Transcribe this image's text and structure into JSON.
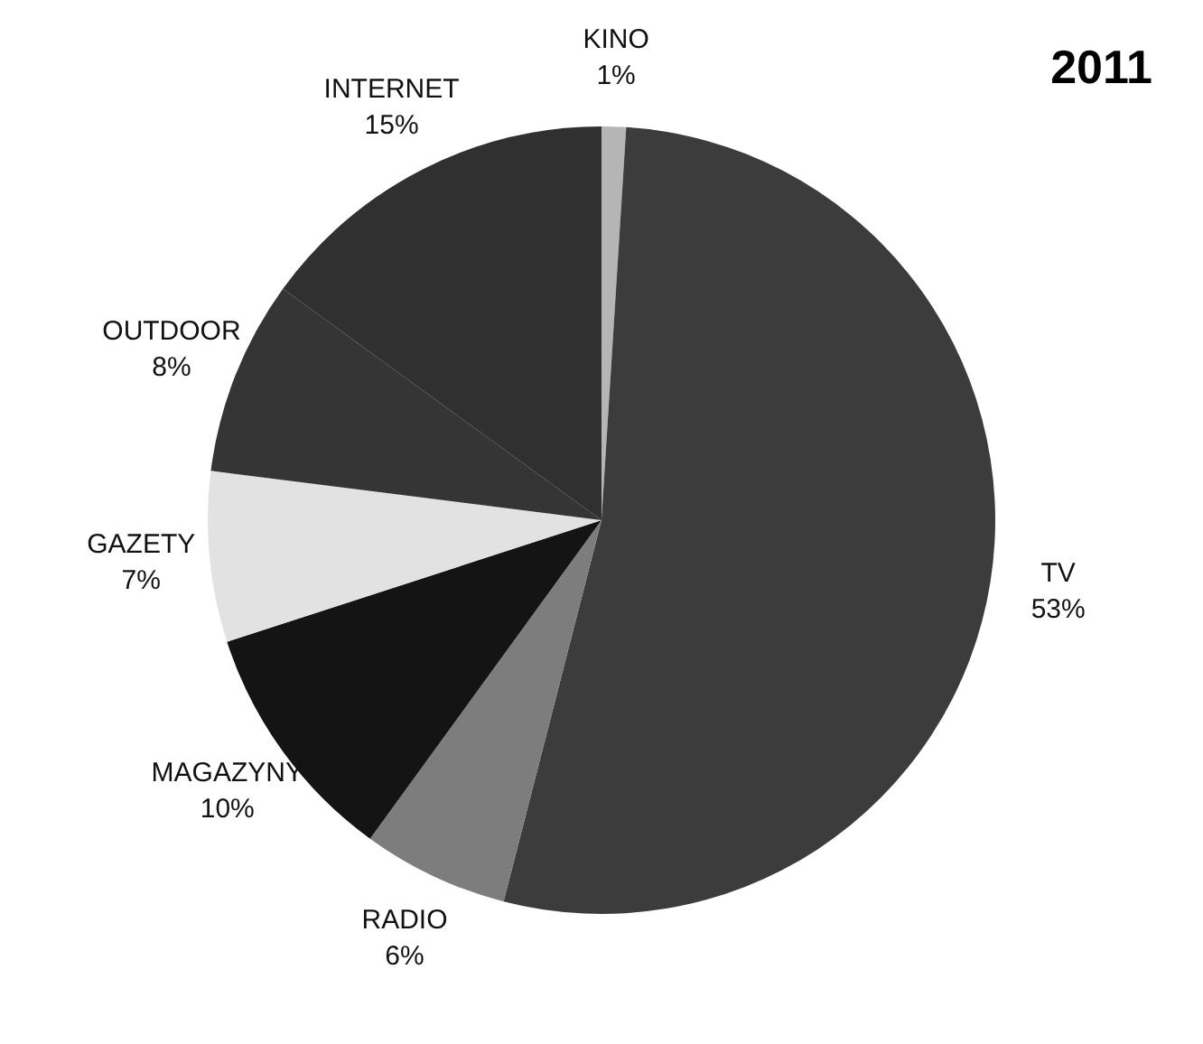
{
  "chart_data": {
    "type": "pie",
    "title": "2011",
    "categories": [
      "KINO",
      "TV",
      "RADIO",
      "MAGAZYNY",
      "GAZETY",
      "OUTDOOR",
      "INTERNET"
    ],
    "values": [
      1,
      53,
      6,
      10,
      7,
      8,
      15
    ],
    "value_labels": [
      "1%",
      "53%",
      "6%",
      "10%",
      "7%",
      "8%",
      "15%"
    ],
    "colors": [
      "#b5b5b5",
      "#3c3c3c",
      "#7d7d7d",
      "#141414",
      "#e2e2e2",
      "#353535",
      "#303030"
    ],
    "legend": false
  }
}
